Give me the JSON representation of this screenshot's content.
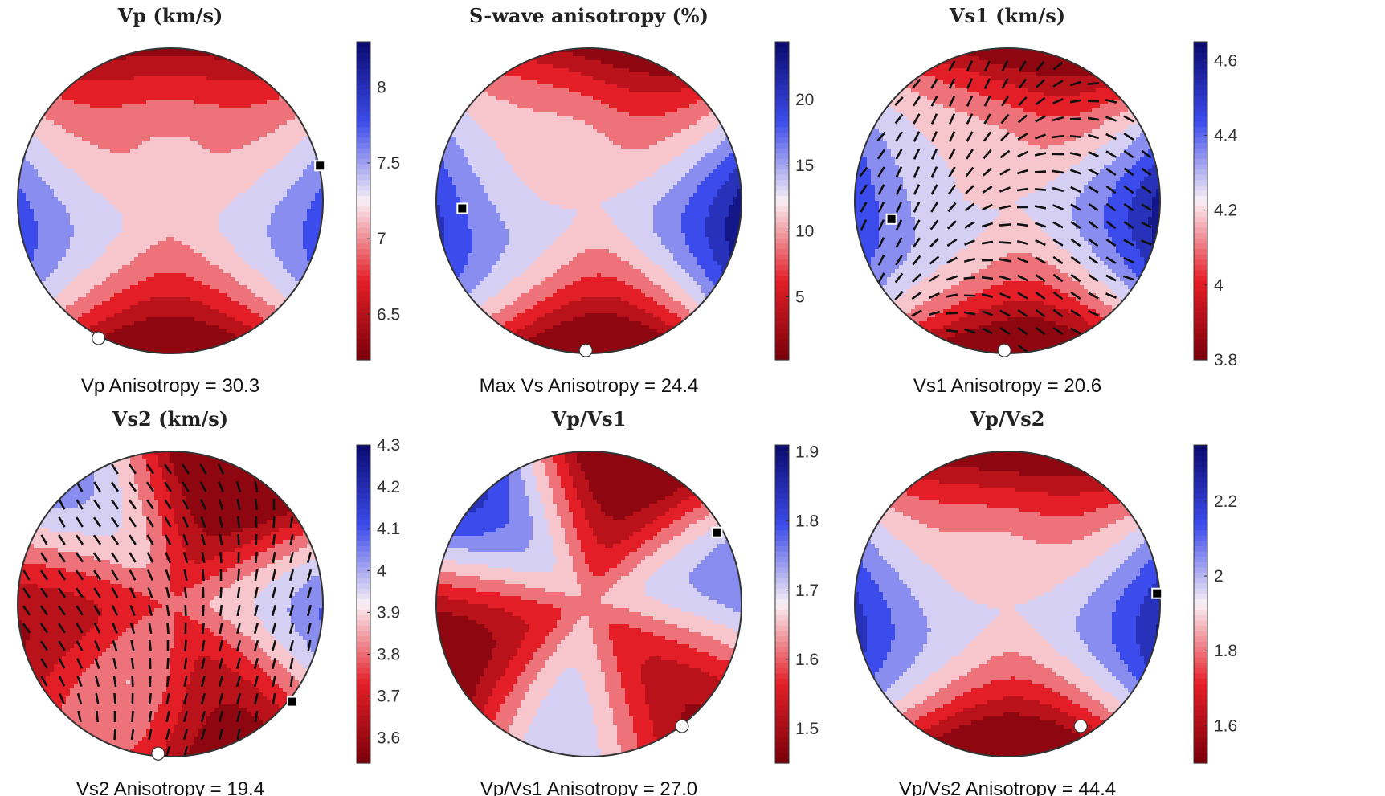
{
  "chart_data": [
    {
      "type": "heatmap",
      "title": "Vp (km/s)",
      "caption": "Vp Anisotropy = 30.3",
      "colorbar": {
        "range": [
          6.2,
          8.3
        ],
        "ticks": [
          "8",
          "7.5",
          "7",
          "6.5"
        ],
        "tick_values": [
          8,
          7.5,
          7,
          6.5
        ]
      },
      "field": {
        "base": 7.15,
        "a": 0.55,
        "b": -0.75,
        "c": 0.2,
        "phase": 0.0
      },
      "max_marker": {
        "x": 0.98,
        "y": -0.23
      },
      "min_marker": {
        "x": -0.47,
        "y": 0.9
      },
      "ticks_overlay": false
    },
    {
      "type": "heatmap",
      "title": "S-wave anisotropy (%)",
      "caption": "Max Vs Anisotropy = 24.4",
      "colorbar": {
        "range": [
          0.2,
          24.4
        ],
        "ticks": [
          "20",
          "15",
          "10",
          "5"
        ],
        "tick_values": [
          20,
          15,
          10,
          5
        ]
      },
      "field": {
        "base": 12,
        "a": 9,
        "b": -7,
        "c": 3,
        "phase": 0.6
      },
      "max_marker": {
        "x": -0.83,
        "y": 0.05
      },
      "min_marker": {
        "x": -0.02,
        "y": 0.98
      },
      "ticks_overlay": false
    },
    {
      "type": "heatmap",
      "title": "Vs1 (km/s)",
      "caption": "Vs1 Anisotropy = 20.6",
      "colorbar": {
        "range": [
          3.8,
          4.65
        ],
        "ticks": [
          "4.6",
          "4.4",
          "4.2",
          "4",
          "3.8"
        ],
        "tick_values": [
          4.6,
          4.4,
          4.2,
          4,
          3.8
        ]
      },
      "field": {
        "base": 4.22,
        "a": 0.32,
        "b": -0.3,
        "c": 0.08,
        "phase": 0.9
      },
      "max_marker": {
        "x": -0.76,
        "y": 0.12
      },
      "min_marker": {
        "x": -0.02,
        "y": 0.98
      },
      "ticks_overlay": true
    },
    {
      "type": "heatmap",
      "title": "Vs2 (km/s)",
      "caption": "Vs2 Anisotropy = 19.4",
      "colorbar": {
        "range": [
          3.54,
          4.3
        ],
        "ticks": [
          "4.3",
          "4.2",
          "4.1",
          "4",
          "3.9",
          "3.8",
          "3.7",
          "3.6"
        ],
        "tick_values": [
          4.3,
          4.2,
          4.1,
          4,
          3.9,
          3.8,
          3.7,
          3.6
        ]
      },
      "field": {
        "base": 3.78,
        "a": 0.1,
        "b": -0.12,
        "c": 0.22,
        "phase": 1.7
      },
      "max_marker": {
        "x": 0.8,
        "y": 0.64
      },
      "min_marker": {
        "x": -0.08,
        "y": 0.98
      },
      "ticks_overlay": true
    },
    {
      "type": "heatmap",
      "title": "Vp/Vs1",
      "caption": "Vp/Vs1 Anisotropy = 27.0",
      "colorbar": {
        "range": [
          1.45,
          1.91
        ],
        "ticks": [
          "1.9",
          "1.8",
          "1.7",
          "1.6",
          "1.5"
        ],
        "tick_values": [
          1.9,
          1.8,
          1.7,
          1.6,
          1.5
        ]
      },
      "field": {
        "base": 1.62,
        "a": 0.08,
        "b": -0.06,
        "c": 0.17,
        "phase": 2.4
      },
      "max_marker": {
        "x": 0.84,
        "y": -0.47
      },
      "min_marker": {
        "x": 0.61,
        "y": 0.8
      },
      "ticks_overlay": false
    },
    {
      "type": "heatmap",
      "title": "Vp/Vs2",
      "caption": "Vp/Vs2 Anisotropy = 44.4",
      "colorbar": {
        "range": [
          1.5,
          2.35
        ],
        "ticks": [
          "2.2",
          "2",
          "1.8",
          "1.6"
        ],
        "tick_values": [
          2.2,
          2,
          1.8,
          1.6
        ]
      },
      "field": {
        "base": 1.92,
        "a": 0.3,
        "b": -0.38,
        "c": 0.08,
        "phase": 0.3
      },
      "max_marker": {
        "x": 0.98,
        "y": -0.07
      },
      "min_marker": {
        "x": 0.48,
        "y": 0.8
      },
      "ticks_overlay": false
    }
  ]
}
